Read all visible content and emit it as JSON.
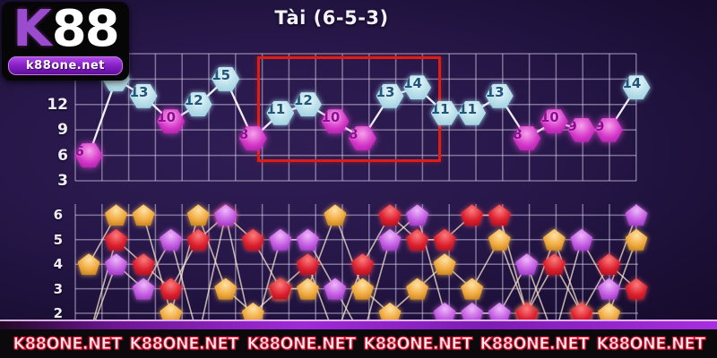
{
  "logo": {
    "k": "K",
    "number": "88",
    "site": "k88one.net"
  },
  "header": {
    "title": "Tài (6-5-3)"
  },
  "banner": {
    "text": "K88ONE.NET",
    "repeat": 6
  },
  "colors": {
    "background": "#261749",
    "grid": "rgba(216,208,235,0.5)",
    "sum_line": "rgba(255,255,255,0.92)",
    "dice_line": "rgba(255,236,210,0.72)",
    "big_marker": "#bfe2ec",
    "small_marker": "#d335c7",
    "highlight_border": "#de1d17",
    "die_orange": "#efa83c",
    "die_red": "#dd1f2d",
    "die_purple": "#c35ce2"
  },
  "chart_data": [
    {
      "type": "line",
      "name": "sum-chart",
      "title": "Tài (6-5-3)",
      "ylabel": "",
      "xlabel": "",
      "y_ticks": [
        12,
        9,
        6,
        3
      ],
      "ylim": [
        3,
        18
      ],
      "grid": true,
      "values": [
        6,
        15,
        13,
        10,
        12,
        15,
        8,
        11,
        12,
        10,
        8,
        13,
        14,
        11,
        11,
        13,
        8,
        10,
        9,
        9,
        14
      ],
      "big_threshold": 11,
      "marker_rule": "value >= 11 cyan (Tai/Big), value <= 10 magenta (Xiu/Small)",
      "highlight_columns": [
        8,
        13
      ]
    },
    {
      "type": "line",
      "name": "dice-chart",
      "y_ticks": [
        6,
        5,
        4,
        3,
        2
      ],
      "ylim": [
        1,
        6
      ],
      "grid": true,
      "series": [
        {
          "name": "die-orange",
          "color": "#efa83c",
          "values": [
            4,
            6,
            6,
            2,
            6,
            3,
            2,
            3,
            3,
            6,
            3,
            2,
            3,
            4,
            3,
            5,
            2,
            5,
            2,
            2,
            5
          ]
        },
        {
          "name": "die-red",
          "color": "#dd1f2d",
          "values": [
            1,
            5,
            4,
            3,
            5,
            6,
            5,
            3,
            4,
            1,
            4,
            6,
            5,
            5,
            6,
            6,
            2,
            4,
            2,
            4,
            3
          ]
        },
        {
          "name": "die-purple",
          "color": "#c35ce2",
          "values": [
            1,
            4,
            3,
            5,
            1,
            6,
            1,
            5,
            5,
            3,
            1,
            5,
            6,
            2,
            2,
            2,
            4,
            1,
            5,
            3,
            6
          ]
        }
      ]
    }
  ]
}
